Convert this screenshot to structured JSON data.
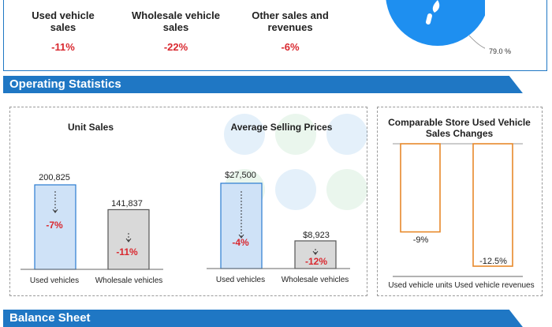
{
  "top_metrics": [
    {
      "label": "Used vehicle sales",
      "value": "-11%"
    },
    {
      "label": "Wholesale vehicle sales",
      "value": "-22%"
    },
    {
      "label": "Other sales and revenues",
      "value": "-6%"
    }
  ],
  "pie_label": "79.0 %",
  "section_titles": {
    "operating": "Operating Statistics",
    "bottom": "Balance Sheet"
  },
  "chart_data": [
    {
      "type": "bar",
      "title": "Unit Sales",
      "categories": [
        "Used vehicles",
        "Wholesale vehicles"
      ],
      "values": [
        200825,
        141837
      ],
      "value_labels": [
        "200,825",
        "141,837"
      ],
      "change_labels": [
        "-7%",
        "-11%"
      ],
      "colors": [
        "#cfe2f7",
        "#d9d9d9"
      ],
      "ylim": [
        0,
        200825
      ]
    },
    {
      "type": "bar",
      "title": "Average Selling Prices",
      "categories": [
        "Used vehicles",
        "Wholesale vehicles"
      ],
      "values": [
        27500,
        8923
      ],
      "value_labels": [
        "$27,500",
        "$8,923"
      ],
      "change_labels": [
        "-4%",
        "-12%"
      ],
      "colors": [
        "#cfe2f7",
        "#d9d9d9"
      ],
      "ylim": [
        0,
        27500
      ]
    },
    {
      "type": "bar",
      "title": "Comparable Store Used Vehicle Sales Changes",
      "categories": [
        "Used vehicle units",
        "Used vehicle revenues"
      ],
      "values": [
        -9,
        -12.5
      ],
      "value_labels": [
        "-9%",
        "-12.5%"
      ],
      "colors": [
        "#e8892b",
        "#e8892b"
      ],
      "ylim": [
        -12.5,
        0
      ]
    }
  ]
}
